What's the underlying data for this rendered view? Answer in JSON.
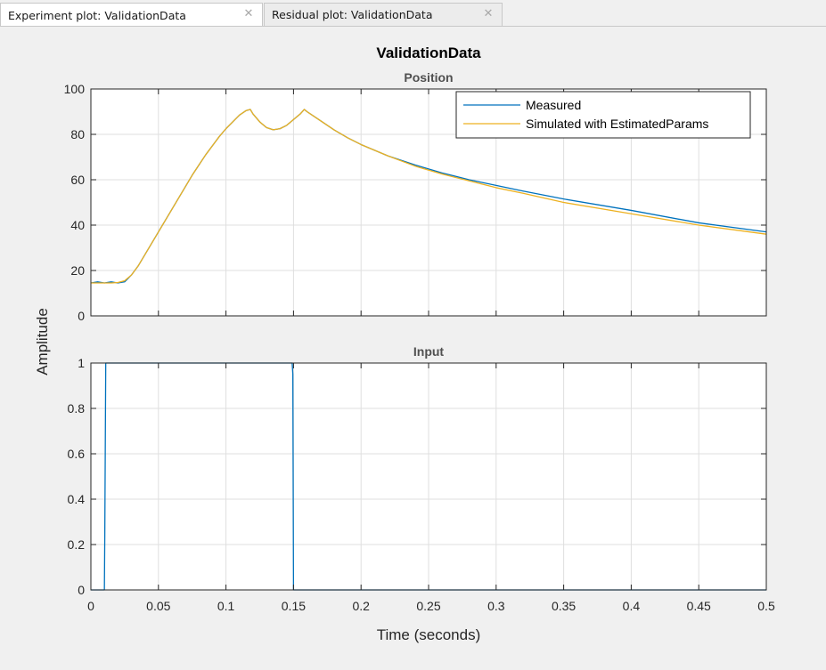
{
  "tabs": [
    {
      "label": "Experiment plot: ValidationData",
      "active": true,
      "close_icon": "close-icon"
    },
    {
      "label": "Residual plot: ValidationData",
      "active": false,
      "close_icon": "close-icon"
    }
  ],
  "colors": {
    "measured": "#0072bd",
    "simulated": "#edb120",
    "grid": "#dfdfdf",
    "axes": "#262626"
  },
  "figure": {
    "title": "ValidationData",
    "ylabel": "Amplitude",
    "xlabel": "Time (seconds)"
  },
  "chart_data": [
    {
      "type": "line",
      "title": "Position",
      "xlabel": "Time (seconds)",
      "ylabel": "Amplitude",
      "xlim": [
        0,
        0.5
      ],
      "ylim": [
        0,
        100
      ],
      "xticks": [
        0,
        0.05,
        0.1,
        0.15,
        0.2,
        0.25,
        0.3,
        0.35,
        0.4,
        0.45,
        0.5
      ],
      "yticks": [
        0,
        20,
        40,
        60,
        80,
        100
      ],
      "ytick_labels": [
        "0",
        "20",
        "40",
        "60",
        "80",
        "100"
      ],
      "grid": true,
      "legend": "top-right",
      "series": [
        {
          "name": "Measured",
          "x": [
            0,
            0.005,
            0.01,
            0.015,
            0.02,
            0.025,
            0.03,
            0.035,
            0.04,
            0.045,
            0.05,
            0.055,
            0.06,
            0.065,
            0.07,
            0.075,
            0.08,
            0.085,
            0.09,
            0.095,
            0.1,
            0.105,
            0.11,
            0.115,
            0.118,
            0.12,
            0.125,
            0.13,
            0.135,
            0.14,
            0.145,
            0.15,
            0.155,
            0.158,
            0.16,
            0.17,
            0.18,
            0.19,
            0.2,
            0.22,
            0.24,
            0.26,
            0.28,
            0.3,
            0.32,
            0.35,
            0.4,
            0.45,
            0.5
          ],
          "y": [
            14.5,
            15,
            14.5,
            15,
            14.5,
            15,
            18,
            22,
            27,
            32,
            37,
            42,
            47,
            52,
            57,
            62,
            66.5,
            71,
            75,
            79,
            82.5,
            85.5,
            88.5,
            90.5,
            91,
            89,
            85.5,
            83,
            82,
            82.5,
            84,
            86.5,
            89,
            91,
            90,
            86,
            82,
            78.5,
            75.5,
            70.5,
            66.5,
            63,
            60,
            57.5,
            55,
            51.5,
            46.5,
            41,
            37
          ]
        },
        {
          "name": "Simulated with EstimatedParams",
          "x": [
            0,
            0.005,
            0.01,
            0.015,
            0.02,
            0.025,
            0.03,
            0.035,
            0.04,
            0.045,
            0.05,
            0.055,
            0.06,
            0.065,
            0.07,
            0.075,
            0.08,
            0.085,
            0.09,
            0.095,
            0.1,
            0.105,
            0.11,
            0.115,
            0.118,
            0.12,
            0.125,
            0.13,
            0.135,
            0.14,
            0.145,
            0.15,
            0.155,
            0.158,
            0.16,
            0.17,
            0.18,
            0.19,
            0.2,
            0.22,
            0.24,
            0.26,
            0.28,
            0.3,
            0.32,
            0.35,
            0.4,
            0.45,
            0.5
          ],
          "y": [
            14.5,
            14.5,
            14.5,
            14.5,
            14.7,
            15.5,
            18,
            22,
            27,
            32,
            37,
            42,
            47,
            52,
            57,
            62,
            66.5,
            71,
            75,
            79,
            82.5,
            85.5,
            88.5,
            90.5,
            91,
            89,
            85.5,
            83,
            82,
            82.5,
            84,
            86.5,
            89,
            91,
            90,
            86,
            82,
            78.5,
            75.5,
            70.5,
            66,
            62.5,
            59.5,
            56.5,
            54,
            50,
            45,
            40,
            36
          ]
        }
      ]
    },
    {
      "type": "line",
      "title": "Input",
      "xlabel": "Time (seconds)",
      "ylabel": "Amplitude",
      "xlim": [
        0,
        0.5
      ],
      "ylim": [
        0,
        1
      ],
      "xticks": [
        0,
        0.05,
        0.1,
        0.15,
        0.2,
        0.25,
        0.3,
        0.35,
        0.4,
        0.45,
        0.5
      ],
      "xtick_labels": [
        "0",
        "0.05",
        "0.1",
        "0.15",
        "0.2",
        "0.25",
        "0.3",
        "0.35",
        "0.4",
        "0.45",
        "0.5"
      ],
      "yticks": [
        0,
        0.2,
        0.4,
        0.6,
        0.8,
        1
      ],
      "ytick_labels": [
        "0",
        "0.2",
        "0.4",
        "0.6",
        "0.8",
        "1"
      ],
      "grid": true,
      "series": [
        {
          "name": "Measured",
          "x": [
            0,
            0.01,
            0.0103,
            0.011,
            0.149,
            0.1495,
            0.15,
            0.5
          ],
          "y": [
            0,
            0,
            0.24,
            1,
            1,
            0.95,
            0,
            0
          ]
        }
      ]
    }
  ]
}
